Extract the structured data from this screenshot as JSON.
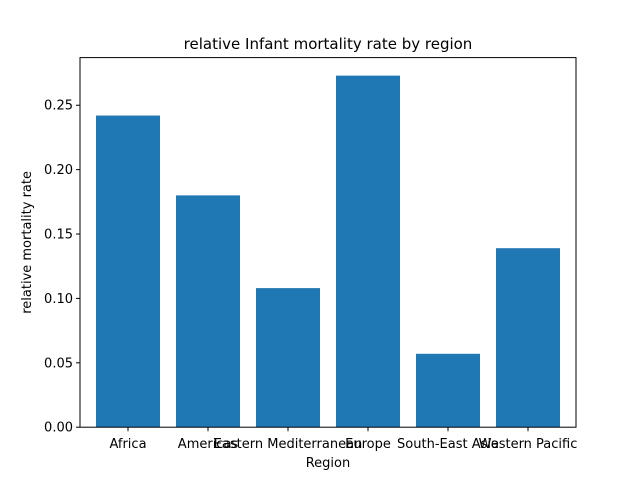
{
  "chart_data": {
    "type": "bar",
    "title": "relative Infant mortality rate by region",
    "xlabel": "Region",
    "ylabel": "relative mortality rate",
    "categories": [
      "Africa",
      "Americas",
      "Eastern Mediterranean",
      "Europe",
      "South-East Asia",
      "Western Pacific"
    ],
    "values": [
      0.242,
      0.18,
      0.108,
      0.273,
      0.057,
      0.139
    ],
    "ylim": [
      0,
      0.287
    ],
    "yticks": [
      "0.00",
      "0.05",
      "0.10",
      "0.15",
      "0.20",
      "0.25"
    ],
    "bar_color": "#1f77b4",
    "grid": false,
    "legend": "none"
  }
}
